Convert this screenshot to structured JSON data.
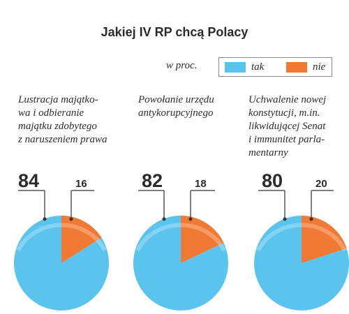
{
  "title": "Jakiej IV RP chcą Polacy",
  "unit": "w proc.",
  "legend": [
    {
      "label": "tak",
      "color": "#5bc4ee"
    },
    {
      "label": "nie",
      "color": "#f07a33"
    }
  ],
  "chart_data": [
    {
      "type": "pie",
      "title": "Lustracja majątko-\nwa i odbieranie\nmajątku zdobytego\nz naruszeniem prawa",
      "categories": [
        "tak",
        "nie"
      ],
      "values": [
        84,
        16
      ]
    },
    {
      "type": "pie",
      "title": "Powołanie urzędu\nantykorupcyjnego",
      "categories": [
        "tak",
        "nie"
      ],
      "values": [
        82,
        18
      ]
    },
    {
      "type": "pie",
      "title": "Uchwalenie nowej\nkonstytucji, m.in.\nlikwidującej Senat\ni immunitet parla-\nmentarny",
      "categories": [
        "tak",
        "nie"
      ],
      "values": [
        80,
        20
      ]
    }
  ]
}
